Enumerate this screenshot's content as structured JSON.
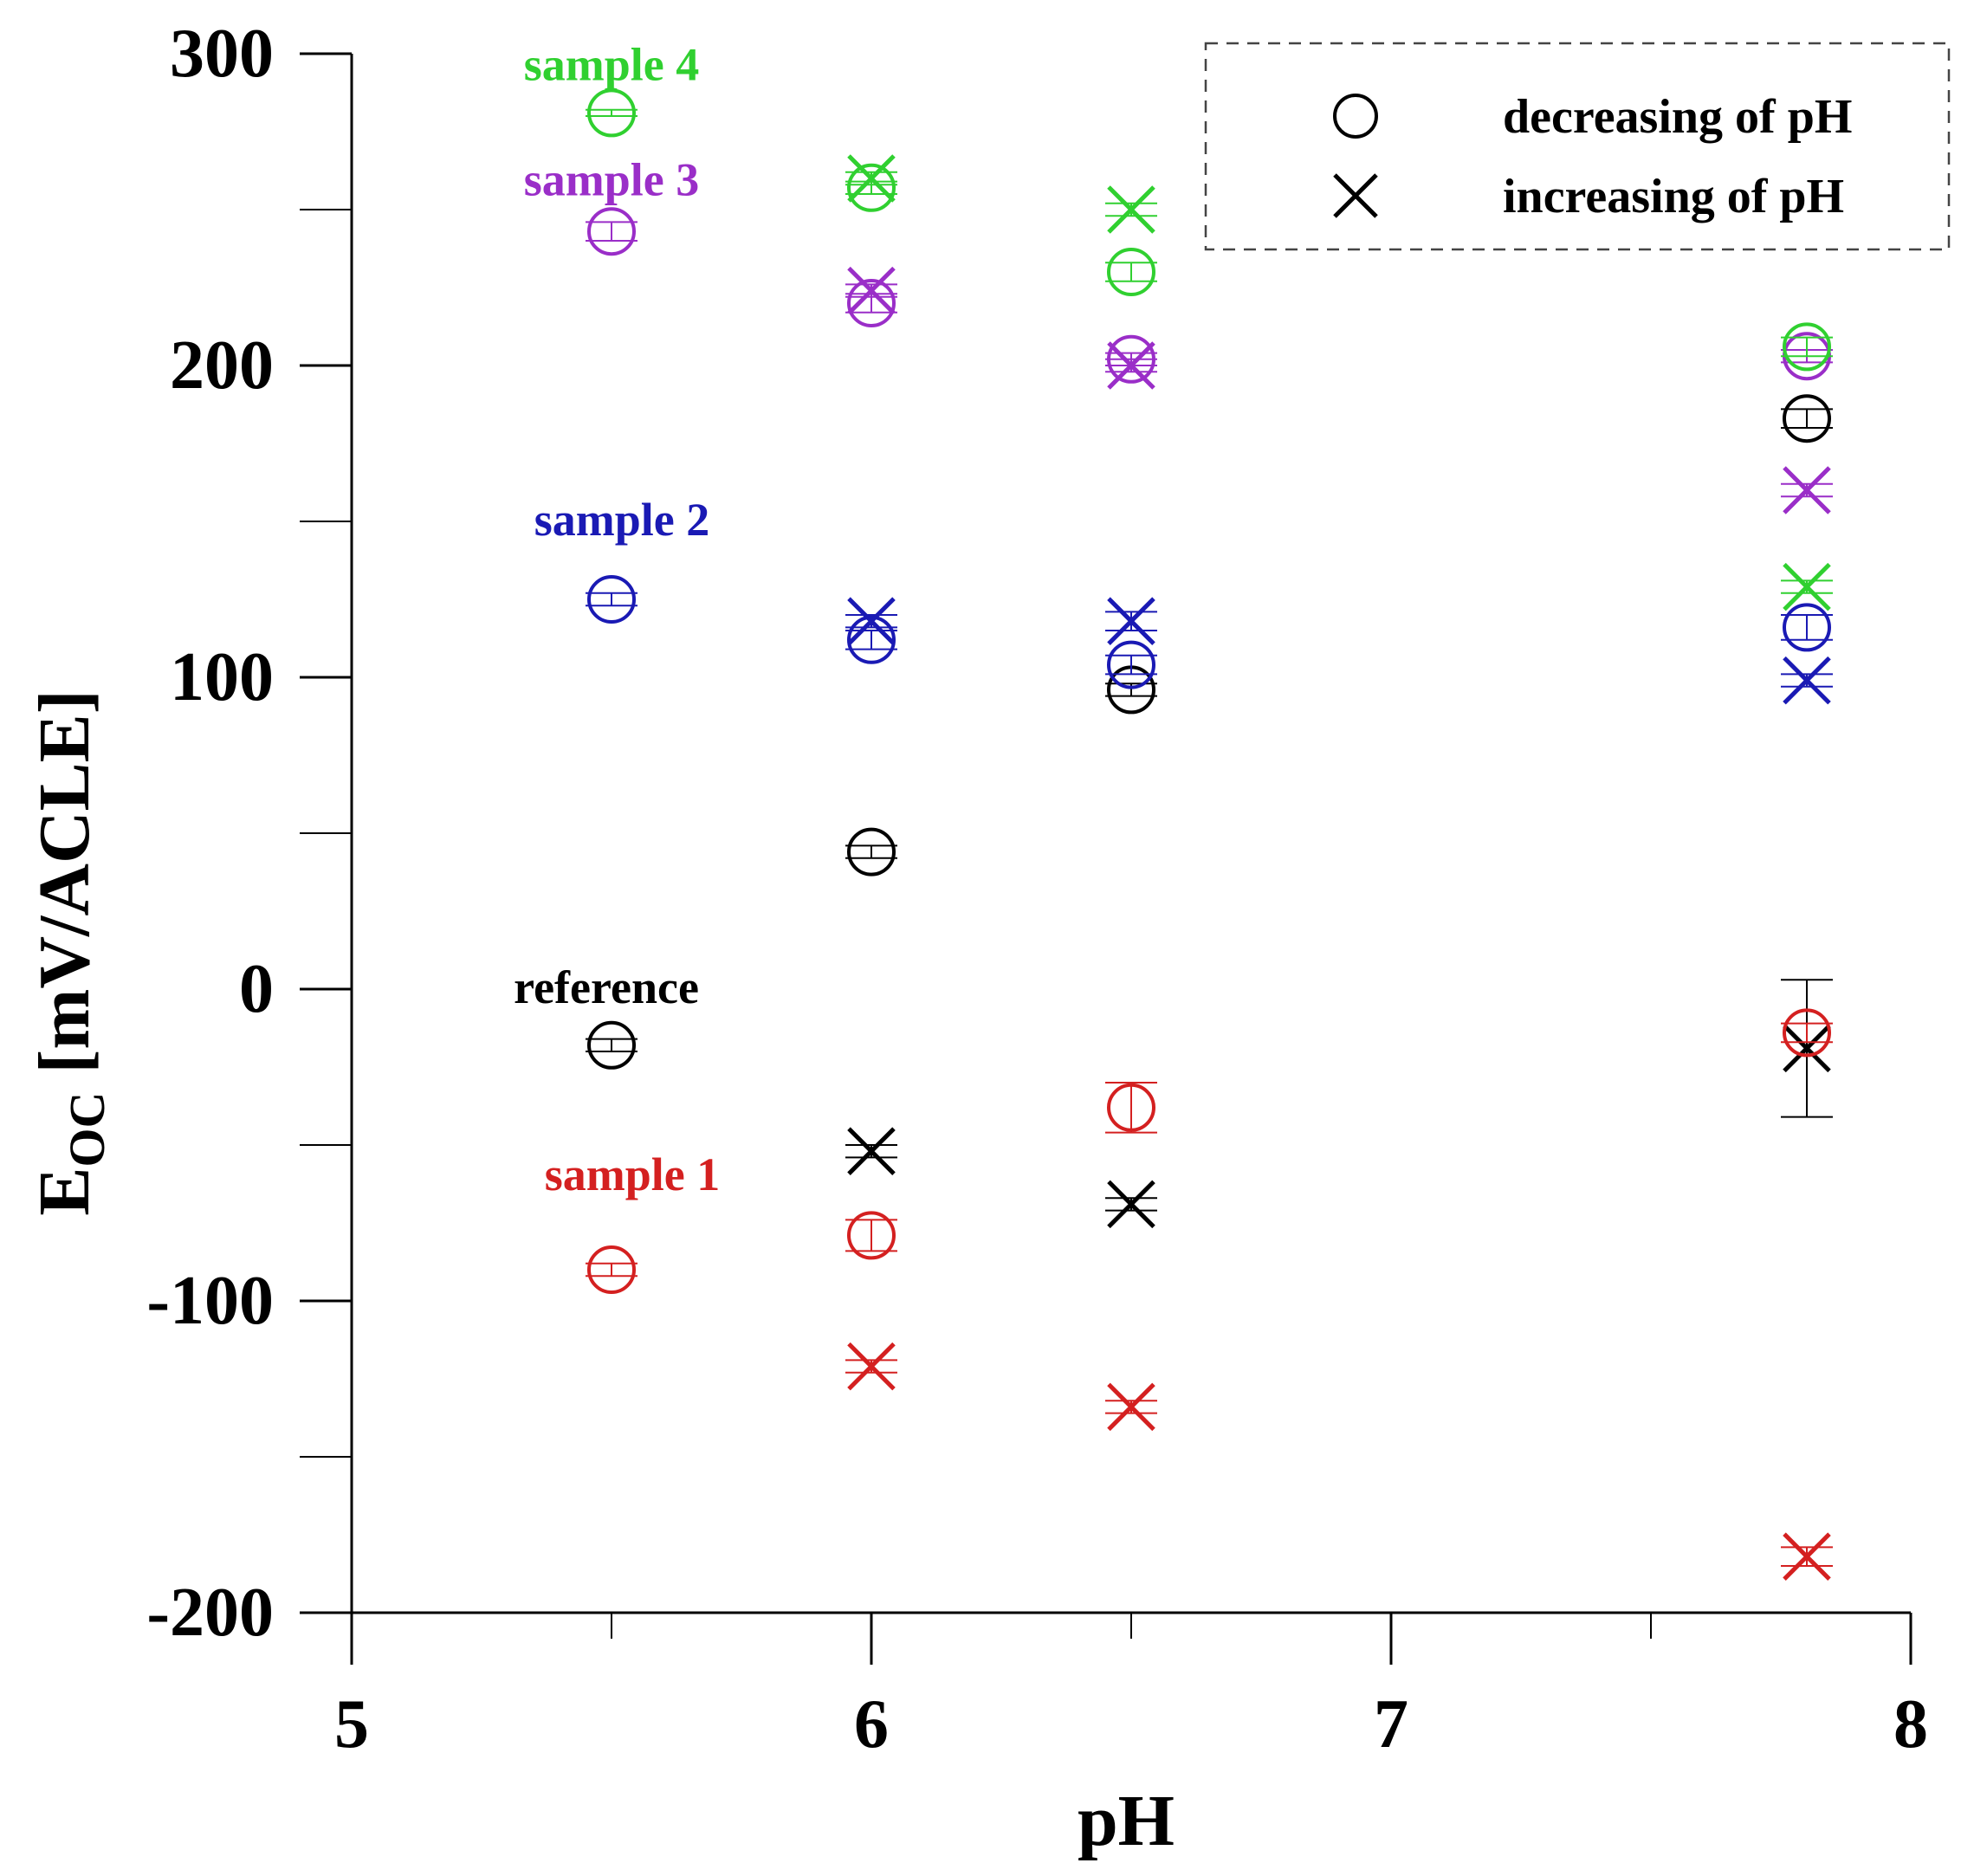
{
  "chart_data": {
    "type": "scatter",
    "xlabel": "pH",
    "ylabel_main": "E",
    "ylabel_sub": "OC",
    "ylabel_rest": " [mV/ACLE]",
    "xlim": [
      5,
      8
    ],
    "ylim": [
      -200,
      300
    ],
    "x_major_ticks": [
      5,
      6,
      7,
      8
    ],
    "x_tick_labels": [
      "5",
      "6",
      "7",
      "8"
    ],
    "x_minor_ticks": [
      5.5,
      6.5,
      7.5
    ],
    "y_major_ticks": [
      -200,
      -100,
      0,
      100,
      200,
      300
    ],
    "y_tick_labels": [
      "-200",
      "-100",
      "0",
      "100",
      "200",
      "300"
    ],
    "y_minor_ticks": [
      -150,
      -50,
      50,
      150,
      250
    ],
    "grid": false,
    "legend": {
      "position": "top-right",
      "items": [
        {
          "marker": "circle",
          "label": "decreasing of pH"
        },
        {
          "marker": "cross",
          "label": "increasing of pH"
        }
      ]
    },
    "series": [
      {
        "name": "reference",
        "color": "#000000",
        "decreasing": [
          {
            "x": 5.5,
            "y": -18,
            "err": 2
          },
          {
            "x": 6.0,
            "y": 44,
            "err": 2
          },
          {
            "x": 6.5,
            "y": 96,
            "err": 2
          },
          {
            "x": 7.8,
            "y": 183,
            "err": 3
          }
        ],
        "increasing": [
          {
            "x": 6.0,
            "y": -52,
            "err": 2
          },
          {
            "x": 6.5,
            "y": -69,
            "err": 2
          },
          {
            "x": 7.8,
            "y": -19,
            "err": 22
          }
        ]
      },
      {
        "name": "sample 1",
        "color": "#d42020",
        "decreasing": [
          {
            "x": 5.5,
            "y": -90,
            "err": 2
          },
          {
            "x": 6.0,
            "y": -79,
            "err": 5
          },
          {
            "x": 6.5,
            "y": -38,
            "err": 8
          },
          {
            "x": 7.8,
            "y": -14,
            "err": 3
          }
        ],
        "increasing": [
          {
            "x": 6.0,
            "y": -121,
            "err": 2
          },
          {
            "x": 6.5,
            "y": -134,
            "err": 2
          },
          {
            "x": 7.8,
            "y": -182,
            "err": 3
          }
        ]
      },
      {
        "name": "sample 2",
        "color": "#1a1ab4",
        "decreasing": [
          {
            "x": 5.5,
            "y": 125,
            "err": 2
          },
          {
            "x": 6.0,
            "y": 112,
            "err": 3
          },
          {
            "x": 6.5,
            "y": 104,
            "err": 3
          },
          {
            "x": 7.8,
            "y": 116,
            "err": 4
          }
        ],
        "increasing": [
          {
            "x": 6.0,
            "y": 118,
            "err": 2
          },
          {
            "x": 6.5,
            "y": 118,
            "err": 3
          },
          {
            "x": 7.8,
            "y": 99,
            "err": 2
          }
        ]
      },
      {
        "name": "sample 3",
        "color": "#9a2ec8",
        "decreasing": [
          {
            "x": 5.5,
            "y": 243,
            "err": 3
          },
          {
            "x": 6.0,
            "y": 220,
            "err": 3
          },
          {
            "x": 6.5,
            "y": 202,
            "err": 2
          },
          {
            "x": 7.8,
            "y": 203,
            "err": 2
          }
        ],
        "increasing": [
          {
            "x": 6.0,
            "y": 224,
            "err": 2
          },
          {
            "x": 6.5,
            "y": 200,
            "err": 2
          },
          {
            "x": 7.8,
            "y": 160,
            "err": 2
          }
        ]
      },
      {
        "name": "sample 4",
        "color": "#30d030",
        "decreasing": [
          {
            "x": 5.5,
            "y": 281,
            "err": 1
          },
          {
            "x": 6.0,
            "y": 257,
            "err": 2
          },
          {
            "x": 6.5,
            "y": 230,
            "err": 3
          },
          {
            "x": 7.8,
            "y": 206,
            "err": 3
          }
        ],
        "increasing": [
          {
            "x": 6.0,
            "y": 260,
            "err": 2
          },
          {
            "x": 6.5,
            "y": 250,
            "err": 2
          },
          {
            "x": 7.8,
            "y": 129,
            "err": 2
          }
        ]
      }
    ],
    "annotations": [
      {
        "text": "sample 4",
        "x": 5.5,
        "y": 296,
        "color": "#30d030"
      },
      {
        "text": "sample 3",
        "x": 5.5,
        "y": 259,
        "color": "#9a2ec8"
      },
      {
        "text": "sample 2",
        "x": 5.52,
        "y": 150,
        "color": "#1a1ab4"
      },
      {
        "text": "reference",
        "x": 5.49,
        "y": 0,
        "color": "#000000"
      },
      {
        "text": "sample 1",
        "x": 5.54,
        "y": -60,
        "color": "#d42020"
      }
    ]
  }
}
